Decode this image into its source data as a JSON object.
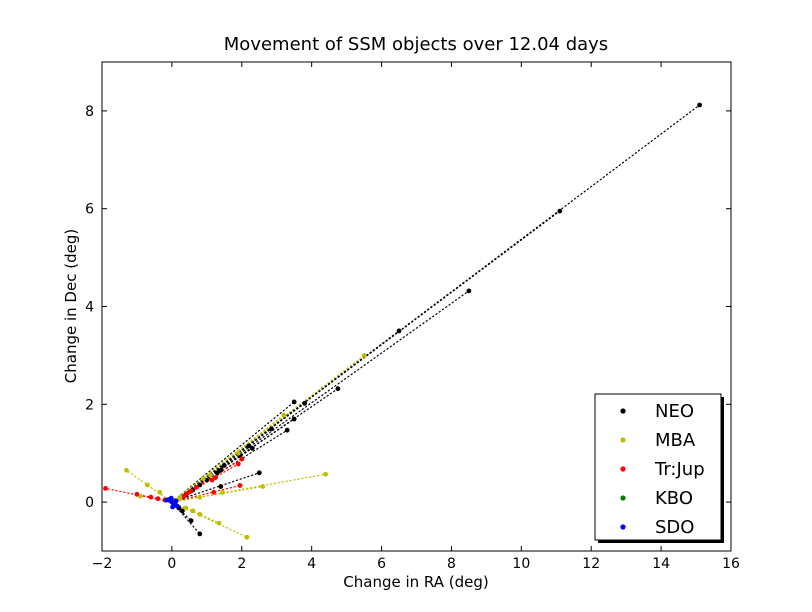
{
  "chart_data": {
    "type": "scatter",
    "title": "Movement of SSM objects over 12.04 days",
    "xlabel": "Change in RA (deg)",
    "ylabel": "Change in Dec (deg)",
    "xlim": [
      -2,
      16
    ],
    "ylim": [
      -1,
      9
    ],
    "xticks": [
      "−2",
      "0",
      "2",
      "4",
      "6",
      "8",
      "10",
      "12",
      "14",
      "16"
    ],
    "yticks": [
      "0",
      "2",
      "4",
      "6",
      "8"
    ],
    "grid": false,
    "legend_position": "lower right",
    "series": [
      {
        "name": "NEO",
        "color": "#000000",
        "tracks": [
          [
            [
              0,
              0
            ],
            [
              15.1,
              8.12
            ]
          ],
          [
            [
              0,
              0
            ],
            [
              11.1,
              5.95
            ]
          ],
          [
            [
              0,
              0
            ],
            [
              8.5,
              4.32
            ]
          ],
          [
            [
              0,
              0
            ],
            [
              6.5,
              3.5
            ]
          ],
          [
            [
              0,
              0
            ],
            [
              4.75,
              2.32
            ]
          ],
          [
            [
              0,
              0
            ],
            [
              3.5,
              2.05
            ]
          ],
          [
            [
              0,
              0
            ],
            [
              3.8,
              2.02
            ]
          ],
          [
            [
              0,
              0
            ],
            [
              3.5,
              1.7
            ]
          ],
          [
            [
              0,
              0
            ],
            [
              2.85,
              1.5
            ]
          ],
          [
            [
              0,
              0
            ],
            [
              3.3,
              1.47
            ]
          ],
          [
            [
              0,
              0
            ],
            [
              2.3,
              1.1
            ]
          ],
          [
            [
              0,
              0
            ],
            [
              2.5,
              0.6
            ]
          ],
          [
            [
              0,
              0
            ],
            [
              0.8,
              -0.65
            ]
          ],
          [
            [
              0,
              0
            ],
            [
              0.55,
              -0.38
            ]
          ]
        ],
        "points": [
          [
            15.1,
            8.12
          ],
          [
            11.1,
            5.95
          ],
          [
            8.5,
            4.32
          ],
          [
            6.5,
            3.5
          ],
          [
            4.75,
            2.32
          ],
          [
            3.5,
            2.05
          ],
          [
            3.8,
            2.02
          ],
          [
            3.5,
            1.7
          ],
          [
            2.85,
            1.5
          ],
          [
            3.3,
            1.47
          ],
          [
            2.3,
            1.1
          ],
          [
            2.2,
            1.15
          ],
          [
            1.95,
            0.95
          ],
          [
            1.4,
            0.65
          ],
          [
            1.3,
            0.6
          ],
          [
            1.0,
            0.45
          ],
          [
            0.8,
            0.35
          ],
          [
            0.6,
            0.25
          ],
          [
            0.4,
            0.15
          ],
          [
            0.3,
            0.1
          ],
          [
            2.5,
            0.6
          ],
          [
            1.4,
            0.32
          ],
          [
            0.8,
            -0.65
          ],
          [
            0.55,
            -0.38
          ],
          [
            0.3,
            -0.18
          ],
          [
            0.2,
            -0.12
          ],
          [
            1.5,
            0.75
          ]
        ]
      },
      {
        "name": "MBA",
        "color": "#bfbf00",
        "tracks": [
          [
            [
              0,
              0
            ],
            [
              5.5,
              3.0
            ]
          ],
          [
            [
              0,
              0
            ],
            [
              3.2,
              1.78
            ]
          ],
          [
            [
              0,
              0
            ],
            [
              4.4,
              0.57
            ]
          ],
          [
            [
              0,
              0
            ],
            [
              2.6,
              0.32
            ]
          ],
          [
            [
              0,
              0
            ],
            [
              -1.3,
              0.65
            ]
          ],
          [
            [
              0,
              0
            ],
            [
              -0.7,
              0.35
            ]
          ],
          [
            [
              0,
              0
            ],
            [
              2.15,
              -0.72
            ]
          ],
          [
            [
              0,
              0
            ],
            [
              1.35,
              -0.43
            ]
          ],
          [
            [
              0,
              0
            ],
            [
              0.8,
              -0.25
            ]
          ]
        ],
        "points": [
          [
            5.5,
            3.0
          ],
          [
            3.2,
            1.78
          ],
          [
            1.9,
            1.0
          ],
          [
            1.1,
            0.55
          ],
          [
            0.9,
            0.48
          ],
          [
            4.4,
            0.57
          ],
          [
            2.6,
            0.32
          ],
          [
            1.45,
            0.2
          ],
          [
            0.8,
            0.1
          ],
          [
            -1.3,
            0.65
          ],
          [
            -0.7,
            0.35
          ],
          [
            -0.35,
            0.2
          ],
          [
            -0.9,
            0.12
          ],
          [
            2.15,
            -0.72
          ],
          [
            1.35,
            -0.43
          ],
          [
            0.8,
            -0.25
          ],
          [
            0.6,
            -0.18
          ],
          [
            0.4,
            -0.12
          ],
          [
            0.2,
            0.06
          ],
          [
            0.25,
            0.1
          ]
        ]
      },
      {
        "name": "Tr:Jup",
        "color": "#ff0000",
        "tracks": [
          [
            [
              0,
              0
            ],
            [
              2.0,
              0.88
            ]
          ],
          [
            [
              0,
              0
            ],
            [
              1.9,
              0.78
            ]
          ],
          [
            [
              0,
              0
            ],
            [
              1.95,
              0.34
            ]
          ],
          [
            [
              0,
              0
            ],
            [
              -1.9,
              0.28
            ]
          ],
          [
            [
              0,
              0
            ],
            [
              -1.0,
              0.16
            ]
          ]
        ],
        "points": [
          [
            2.0,
            0.88
          ],
          [
            1.9,
            0.78
          ],
          [
            1.95,
            0.34
          ],
          [
            1.25,
            0.5
          ],
          [
            1.15,
            0.45
          ],
          [
            0.7,
            0.3
          ],
          [
            0.55,
            0.22
          ],
          [
            0.45,
            0.18
          ],
          [
            0.35,
            0.12
          ],
          [
            1.2,
            0.2
          ],
          [
            -1.9,
            0.28
          ],
          [
            -1.0,
            0.16
          ],
          [
            -0.6,
            0.1
          ],
          [
            -0.4,
            0.07
          ],
          [
            -0.2,
            0.04
          ]
        ]
      },
      {
        "name": "KBO",
        "color": "#007f00",
        "tracks": [],
        "points": [
          [
            0.05,
            0.02
          ],
          [
            0.08,
            0.03
          ],
          [
            0.03,
            0.0
          ]
        ]
      },
      {
        "name": "SDO",
        "color": "#0000ff",
        "tracks": [],
        "points": [
          [
            0.0,
            0.0
          ],
          [
            0.05,
            -0.04
          ],
          [
            -0.05,
            0.03
          ],
          [
            0.1,
            -0.06
          ],
          [
            -0.1,
            0.05
          ],
          [
            0.15,
            -0.08
          ],
          [
            -0.15,
            0.04
          ],
          [
            0.12,
            0.02
          ],
          [
            0.02,
            -0.1
          ],
          [
            -0.02,
            0.08
          ]
        ]
      }
    ]
  }
}
